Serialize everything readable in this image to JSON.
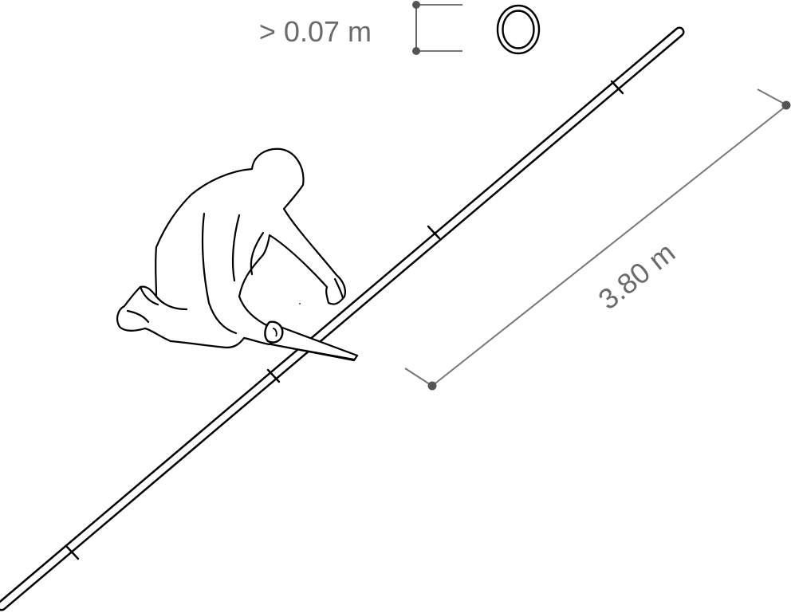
{
  "diameter_annotation": {
    "label": "> 0.07 m",
    "cross_section_icon": "pipe-cross-section-icon"
  },
  "length_annotation": {
    "label": "3.80 m"
  },
  "illustration": {
    "figure_icon": "kneeling-person-sawing-icon",
    "tool_icon": "hand-saw-icon",
    "object_icon": "long-pole-icon"
  },
  "colors": {
    "line": "#000000",
    "dimension": "#666666",
    "text": "#6b6b6b",
    "background": "#ffffff"
  }
}
